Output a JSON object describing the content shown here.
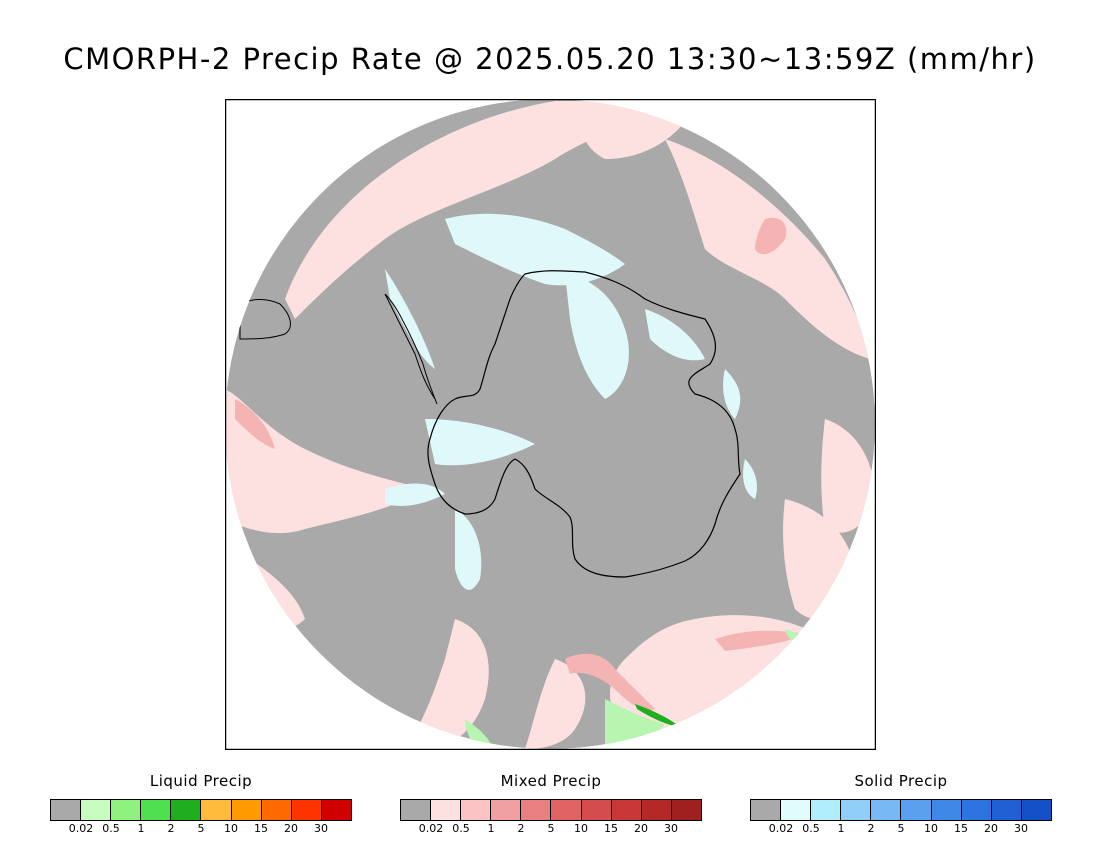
{
  "title": "CMORPH-2 Precip Rate @ 2025.05.20 13:30~13:59Z (mm/hr)",
  "map": {
    "projection": "south-polar-stereographic",
    "continent": "Antarctica",
    "colors": {
      "background": "#a9a9a9",
      "mixed_light": "#fde1e1",
      "mixed_mid": "#f5b4b4",
      "mixed_strong": "#e88484",
      "solid_light": "#dff9fb",
      "liquid_light": "#b8f5b0",
      "liquid_mid": "#5fdc5a",
      "liquid_strong": "#1fae1f",
      "coastline": "#000000"
    }
  },
  "legends": [
    {
      "title": "Liquid Precip",
      "ticks": [
        "0.02",
        "0.5",
        "1",
        "2",
        "5",
        "10",
        "15",
        "20",
        "30"
      ],
      "colors": [
        "#a9a9a9",
        "#c8fdc0",
        "#90f080",
        "#4fe04f",
        "#1eae1e",
        "#ffbb3c",
        "#ff9a00",
        "#ff6a00",
        "#ff3300",
        "#d00000"
      ]
    },
    {
      "title": "Mixed Precip",
      "ticks": [
        "0.02",
        "0.5",
        "1",
        "2",
        "5",
        "10",
        "15",
        "20",
        "30"
      ],
      "colors": [
        "#a9a9a9",
        "#fde1e1",
        "#fbc4c4",
        "#f0a0a0",
        "#e88080",
        "#e06464",
        "#d44c4c",
        "#c83838",
        "#b42828",
        "#a02020"
      ]
    },
    {
      "title": "Solid Precip",
      "ticks": [
        "0.02",
        "0.5",
        "1",
        "2",
        "5",
        "10",
        "15",
        "20",
        "30"
      ],
      "colors": [
        "#a9a9a9",
        "#e0fcfd",
        "#b0eefb",
        "#90d0f8",
        "#78b8f4",
        "#5aa0ee",
        "#4088e8",
        "#2e74e0",
        "#2060d4",
        "#1450c8"
      ]
    }
  ]
}
